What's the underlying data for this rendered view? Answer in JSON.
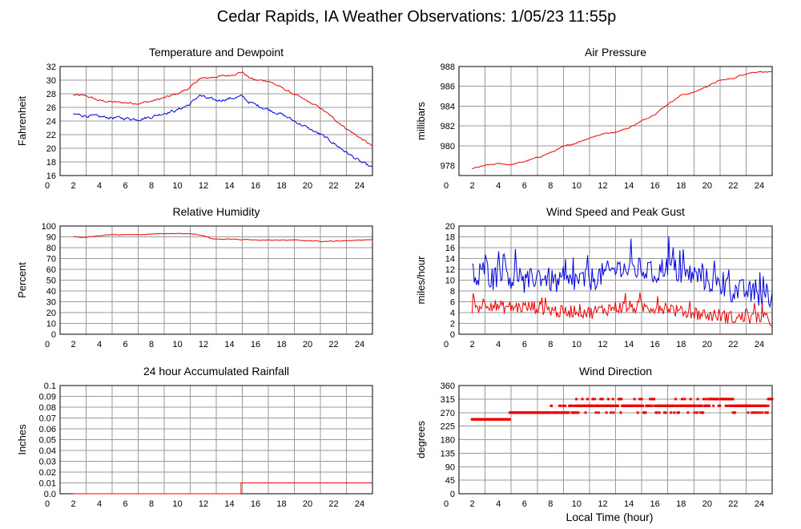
{
  "page": {
    "title": "Cedar Rapids, IA Weather Observations: 1/05/23 11:55p",
    "x_axis_label": "Local Time (hour)"
  },
  "colors": {
    "red": "#ee0000",
    "blue": "#0000dd",
    "grid": "#9a9a9a"
  },
  "chart_data": [
    {
      "id": "temp",
      "type": "line",
      "title": "Temperature and Dewpoint",
      "ylabel": "Fahrenheit",
      "xlim": [
        0,
        24
      ],
      "ylim": [
        16,
        32
      ],
      "xticks": [
        0,
        2,
        4,
        6,
        8,
        10,
        12,
        14,
        16,
        18,
        20,
        22,
        24
      ],
      "yticks": [
        16,
        18,
        20,
        22,
        24,
        26,
        28,
        30,
        32
      ],
      "grid": true,
      "series": [
        {
          "color": "red",
          "noise": 0.12,
          "points": [
            [
              1,
              27.8
            ],
            [
              2,
              27.7
            ],
            [
              3,
              27.0
            ],
            [
              4,
              26.8
            ],
            [
              5,
              26.7
            ],
            [
              6,
              26.6
            ],
            [
              7,
              26.9
            ],
            [
              8,
              27.4
            ],
            [
              9,
              28.0
            ],
            [
              10,
              28.9
            ],
            [
              10.7,
              30.2
            ],
            [
              11.2,
              30.3
            ],
            [
              12,
              30.5
            ],
            [
              13,
              30.7
            ],
            [
              14,
              31.2
            ],
            [
              14.5,
              30.4
            ],
            [
              15,
              30.0
            ],
            [
              16,
              29.9
            ],
            [
              17,
              28.9
            ],
            [
              18,
              27.9
            ],
            [
              19,
              26.9
            ],
            [
              20,
              25.9
            ],
            [
              21,
              24.4
            ],
            [
              22,
              22.9
            ],
            [
              23,
              21.6
            ],
            [
              24,
              20.3
            ]
          ]
        },
        {
          "color": "blue",
          "noise": 0.18,
          "points": [
            [
              1,
              25.0
            ],
            [
              2,
              24.8
            ],
            [
              3,
              24.6
            ],
            [
              4,
              24.5
            ],
            [
              5,
              24.4
            ],
            [
              6,
              24.3
            ],
            [
              7,
              24.6
            ],
            [
              8,
              25.2
            ],
            [
              9,
              25.6
            ],
            [
              10,
              26.5
            ],
            [
              10.7,
              27.8
            ],
            [
              11.3,
              27.3
            ],
            [
              12,
              27.0
            ],
            [
              13,
              27.3
            ],
            [
              14,
              27.6
            ],
            [
              14.5,
              26.8
            ],
            [
              15,
              26.4
            ],
            [
              16,
              25.7
            ],
            [
              17,
              25.0
            ],
            [
              18,
              24.0
            ],
            [
              19,
              23.0
            ],
            [
              20,
              22.0
            ],
            [
              21,
              20.8
            ],
            [
              22,
              19.4
            ],
            [
              23,
              18.1
            ],
            [
              24,
              17.1
            ]
          ]
        }
      ]
    },
    {
      "id": "pressure",
      "type": "line",
      "title": "Air Pressure",
      "ylabel": "millibars",
      "xlim": [
        0,
        24
      ],
      "ylim": [
        977,
        988
      ],
      "xticks": [
        0,
        2,
        4,
        6,
        8,
        10,
        12,
        14,
        16,
        18,
        20,
        22,
        24
      ],
      "yticks": [
        978,
        980,
        982,
        984,
        986,
        988
      ],
      "grid": true,
      "series": [
        {
          "color": "red",
          "noise": 0.05,
          "points": [
            [
              1,
              977.7
            ],
            [
              2,
              978.0
            ],
            [
              3,
              978.2
            ],
            [
              4,
              978.1
            ],
            [
              5,
              978.4
            ],
            [
              6,
              978.8
            ],
            [
              7,
              979.3
            ],
            [
              8,
              979.9
            ],
            [
              9,
              980.3
            ],
            [
              10,
              980.8
            ],
            [
              11,
              981.2
            ],
            [
              12,
              981.4
            ],
            [
              13,
              981.8
            ],
            [
              14,
              982.5
            ],
            [
              15,
              983.2
            ],
            [
              16,
              984.2
            ],
            [
              17,
              985.1
            ],
            [
              18,
              985.4
            ],
            [
              19,
              986.0
            ],
            [
              20,
              986.6
            ],
            [
              21,
              986.8
            ],
            [
              22,
              987.3
            ],
            [
              23,
              987.5
            ],
            [
              24,
              987.4
            ]
          ]
        }
      ]
    },
    {
      "id": "humidity",
      "type": "line",
      "title": "Relative Humidity",
      "ylabel": "Percent",
      "xlim": [
        0,
        24
      ],
      "ylim": [
        0,
        100
      ],
      "xticks": [
        0,
        2,
        4,
        6,
        8,
        10,
        12,
        14,
        16,
        18,
        20,
        22,
        24
      ],
      "yticks": [
        0,
        10,
        20,
        30,
        40,
        50,
        60,
        70,
        80,
        90,
        100
      ],
      "grid": true,
      "series": [
        {
          "color": "red",
          "noise": 0.25,
          "points": [
            [
              1,
              90
            ],
            [
              2,
              89.5
            ],
            [
              3,
              91
            ],
            [
              4,
              92
            ],
            [
              6,
              92
            ],
            [
              7,
              92.5
            ],
            [
              8,
              93
            ],
            [
              10,
              93
            ],
            [
              11,
              91
            ],
            [
              11.8,
              88
            ],
            [
              13,
              88
            ],
            [
              14,
              87.5
            ],
            [
              15,
              87
            ],
            [
              18,
              87
            ],
            [
              19,
              86.5
            ],
            [
              20,
              86
            ],
            [
              21,
              86
            ],
            [
              22,
              86.5
            ],
            [
              24,
              87.5
            ]
          ]
        }
      ]
    },
    {
      "id": "wind",
      "type": "line",
      "title": "Wind Speed and Peak Gust",
      "ylabel": "miles/hour",
      "xlim": [
        0,
        24
      ],
      "ylim": [
        0,
        20
      ],
      "xticks": [
        0,
        2,
        4,
        6,
        8,
        10,
        12,
        14,
        16,
        18,
        20,
        22,
        24
      ],
      "yticks": [
        0,
        2,
        4,
        6,
        8,
        10,
        12,
        14,
        16,
        18,
        20
      ],
      "grid": true,
      "series": [
        {
          "color": "blue",
          "noise": 1.6,
          "spikes": true,
          "points": [
            [
              1,
              12
            ],
            [
              1.5,
              9
            ],
            [
              2,
              13
            ],
            [
              2.5,
              10
            ],
            [
              3,
              11
            ],
            [
              3.5,
              13
            ],
            [
              4,
              10
            ],
            [
              4.5,
              11
            ],
            [
              5,
              9
            ],
            [
              6,
              11
            ],
            [
              7,
              10
            ],
            [
              8,
              9
            ],
            [
              9,
              10
            ],
            [
              10,
              10
            ],
            [
              11,
              11
            ],
            [
              12,
              12
            ],
            [
              13,
              12
            ],
            [
              14,
              12
            ],
            [
              15,
              11
            ],
            [
              16,
              13
            ],
            [
              17,
              11
            ],
            [
              18,
              11
            ],
            [
              19,
              10
            ],
            [
              20,
              9
            ],
            [
              21,
              8
            ],
            [
              22,
              8
            ],
            [
              23,
              7
            ],
            [
              24,
              6
            ]
          ]
        },
        {
          "color": "red",
          "noise": 0.9,
          "spikes": true,
          "points": [
            [
              1,
              5
            ],
            [
              1.5,
              5
            ],
            [
              2,
              6
            ],
            [
              3,
              5
            ],
            [
              4,
              5
            ],
            [
              5,
              5
            ],
            [
              6,
              5
            ],
            [
              7,
              4.5
            ],
            [
              8,
              4
            ],
            [
              9,
              4.5
            ],
            [
              10,
              4
            ],
            [
              11,
              4.5
            ],
            [
              12,
              5
            ],
            [
              13,
              5
            ],
            [
              14,
              5
            ],
            [
              15,
              5
            ],
            [
              16,
              5
            ],
            [
              17,
              4
            ],
            [
              18,
              4
            ],
            [
              19,
              3.5
            ],
            [
              20,
              3.5
            ],
            [
              21,
              3
            ],
            [
              22,
              3
            ],
            [
              23,
              3
            ],
            [
              24,
              2.5
            ]
          ]
        }
      ]
    },
    {
      "id": "rain",
      "type": "line",
      "title": "24 hour Accumulated Rainfall",
      "ylabel": "Inches",
      "xlim": [
        0,
        24
      ],
      "ylim": [
        0,
        0.1
      ],
      "xticks": [
        0,
        2,
        4,
        6,
        8,
        10,
        12,
        14,
        16,
        18,
        20,
        22,
        24
      ],
      "yticks": [
        "0.0",
        "0.01",
        "0.02",
        "0.03",
        "0.04",
        "0.05",
        "0.06",
        "0.07",
        "0.08",
        "0.09",
        "0.1"
      ],
      "grid": true,
      "series": [
        {
          "color": "red",
          "step": true,
          "points": [
            [
              1,
              0
            ],
            [
              13.9,
              0
            ],
            [
              13.9,
              0.01
            ],
            [
              24,
              0.01
            ]
          ]
        }
      ]
    },
    {
      "id": "direction",
      "type": "scatter",
      "title": "Wind Direction",
      "ylabel": "degrees",
      "xlim": [
        0,
        24
      ],
      "ylim": [
        0,
        360
      ],
      "xticks": [
        0,
        2,
        4,
        6,
        8,
        10,
        12,
        14,
        16,
        18,
        20,
        22,
        24
      ],
      "yticks": [
        0,
        45,
        90,
        135,
        180,
        225,
        270,
        315,
        360
      ],
      "grid": true,
      "segments": [
        {
          "x0": 1.0,
          "x1": 3.9,
          "y": 247.5
        },
        {
          "x0": 3.9,
          "x1": 6.8,
          "y": 270
        },
        {
          "x0": 6.8,
          "x1": 9.0,
          "y": 270,
          "alt": [
            292.5
          ],
          "altRate": 0.35
        },
        {
          "x0": 9.0,
          "x1": 13.5,
          "y": 292.5,
          "alt": [
            270,
            315
          ],
          "altRate": 0.3
        },
        {
          "x0": 13.5,
          "x1": 19.2,
          "y": 292.5,
          "alt": [
            315,
            270
          ],
          "altRate": 0.3
        },
        {
          "x0": 19.2,
          "x1": 21.0,
          "y": 315,
          "alt": [
            292.5
          ],
          "altRate": 0.35
        },
        {
          "x0": 21.0,
          "x1": 23.7,
          "y": 292.5,
          "alt": [
            270
          ],
          "altRate": 0.15
        },
        {
          "x0": 23.7,
          "x1": 24.0,
          "y": 315
        }
      ]
    }
  ]
}
